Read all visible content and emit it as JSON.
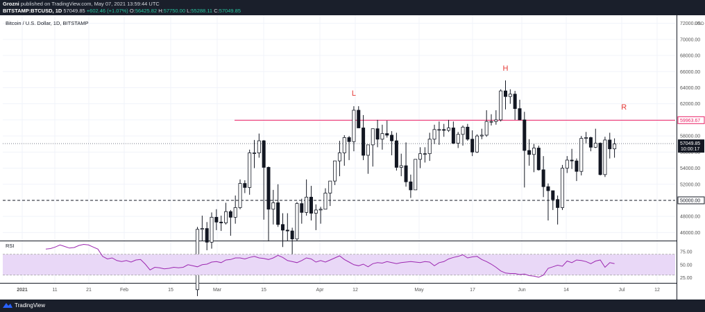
{
  "header": {
    "author": "Grozni",
    "published_text": "published on TradingView.com, May 07, 2021 13:59:44 UTC",
    "symbol": "BITSTAMP:BTCUSD, 1D",
    "last": "57049.85",
    "change": "+602.46 (+1.07%)",
    "open_label": "O:",
    "open": "56425.82",
    "high_label": "H:",
    "high": "57750.00",
    "low_label": "L:",
    "low": "55288.11",
    "close_label": "C:",
    "close": "57049.85"
  },
  "footer": {
    "brand": "TradingView"
  },
  "chart_data": {
    "type": "candlestick",
    "title": "Bitcoin / U.S. Dollar, 1D, BITSTAMP",
    "currency_label": "USD",
    "price_axis": {
      "range": [
        45000,
        73000
      ],
      "ticks": [
        "46000.00",
        "48000.00",
        "50000.00",
        "52000.00",
        "54000.00",
        "56000.00",
        "58000.00",
        "60000.00",
        "62000.00",
        "64000.00",
        "66000.00",
        "68000.00",
        "70000.00",
        "72000.00"
      ]
    },
    "time_axis": {
      "labels": [
        "2021",
        "11",
        "21",
        "Feb",
        "15",
        "Mar",
        "15",
        "Apr",
        "12",
        "May",
        "17",
        "Jun",
        "14",
        "Jul",
        "12"
      ]
    },
    "candles": [
      {
        "date": "2021-02-08",
        "o": 38900,
        "h": 46700,
        "l": 38100,
        "c": 46400
      },
      {
        "date": "2021-02-09",
        "o": 46400,
        "h": 48100,
        "l": 45000,
        "c": 46500
      },
      {
        "date": "2021-02-10",
        "o": 46500,
        "h": 47300,
        "l": 43800,
        "c": 44800
      },
      {
        "date": "2021-02-11",
        "o": 44800,
        "h": 48500,
        "l": 44000,
        "c": 47900
      },
      {
        "date": "2021-02-12",
        "o": 47900,
        "h": 48900,
        "l": 46300,
        "c": 47300
      },
      {
        "date": "2021-02-13",
        "o": 47300,
        "h": 48100,
        "l": 46200,
        "c": 47200
      },
      {
        "date": "2021-02-14",
        "o": 47200,
        "h": 49700,
        "l": 47000,
        "c": 48600
      },
      {
        "date": "2021-02-15",
        "o": 48600,
        "h": 48800,
        "l": 45600,
        "c": 47900
      },
      {
        "date": "2021-02-16",
        "o": 47900,
        "h": 50600,
        "l": 47100,
        "c": 49100
      },
      {
        "date": "2021-02-17",
        "o": 49100,
        "h": 52600,
        "l": 48900,
        "c": 52100
      },
      {
        "date": "2021-02-18",
        "o": 52100,
        "h": 52500,
        "l": 50900,
        "c": 51600
      },
      {
        "date": "2021-02-19",
        "o": 51600,
        "h": 56300,
        "l": 50700,
        "c": 55900
      },
      {
        "date": "2021-02-20",
        "o": 55900,
        "h": 57500,
        "l": 54000,
        "c": 55900
      },
      {
        "date": "2021-02-21",
        "o": 55900,
        "h": 58300,
        "l": 55300,
        "c": 57400
      },
      {
        "date": "2021-02-22",
        "o": 57400,
        "h": 57500,
        "l": 47600,
        "c": 54100
      },
      {
        "date": "2021-02-23",
        "o": 54100,
        "h": 54200,
        "l": 44900,
        "c": 48900
      },
      {
        "date": "2021-02-24",
        "o": 48900,
        "h": 51300,
        "l": 47000,
        "c": 49700
      },
      {
        "date": "2021-02-25",
        "o": 49700,
        "h": 52000,
        "l": 46700,
        "c": 47000
      },
      {
        "date": "2021-02-26",
        "o": 47000,
        "h": 48400,
        "l": 44200,
        "c": 46300
      },
      {
        "date": "2021-02-27",
        "o": 46300,
        "h": 48400,
        "l": 45000,
        "c": 46200
      },
      {
        "date": "2021-02-28",
        "o": 46200,
        "h": 46600,
        "l": 43100,
        "c": 45200
      },
      {
        "date": "2021-03-01",
        "o": 45200,
        "h": 49800,
        "l": 45000,
        "c": 49600
      },
      {
        "date": "2021-03-02",
        "o": 49600,
        "h": 50200,
        "l": 47100,
        "c": 48500
      },
      {
        "date": "2021-03-03",
        "o": 48500,
        "h": 52600,
        "l": 48100,
        "c": 50400
      },
      {
        "date": "2021-03-04",
        "o": 50400,
        "h": 51800,
        "l": 47500,
        "c": 48400
      },
      {
        "date": "2021-03-05",
        "o": 48400,
        "h": 49500,
        "l": 46300,
        "c": 48800
      },
      {
        "date": "2021-03-06",
        "o": 48800,
        "h": 49200,
        "l": 47100,
        "c": 48900
      },
      {
        "date": "2021-03-07",
        "o": 48900,
        "h": 51500,
        "l": 48900,
        "c": 50900
      },
      {
        "date": "2021-03-08",
        "o": 50900,
        "h": 52400,
        "l": 49300,
        "c": 52400
      },
      {
        "date": "2021-03-09",
        "o": 52400,
        "h": 54900,
        "l": 51900,
        "c": 54900
      },
      {
        "date": "2021-03-10",
        "o": 54900,
        "h": 57400,
        "l": 53000,
        "c": 55900
      },
      {
        "date": "2021-03-11",
        "o": 55900,
        "h": 58100,
        "l": 54300,
        "c": 57800
      },
      {
        "date": "2021-03-12",
        "o": 57800,
        "h": 58000,
        "l": 55000,
        "c": 57300
      },
      {
        "date": "2021-03-13",
        "o": 57300,
        "h": 61700,
        "l": 56100,
        "c": 61200
      },
      {
        "date": "2021-03-14",
        "o": 61200,
        "h": 61700,
        "l": 59000,
        "c": 59000
      },
      {
        "date": "2021-03-15",
        "o": 59000,
        "h": 60600,
        "l": 55000,
        "c": 55600
      },
      {
        "date": "2021-03-16",
        "o": 55600,
        "h": 56900,
        "l": 53300,
        "c": 56900
      },
      {
        "date": "2021-03-17",
        "o": 56900,
        "h": 58900,
        "l": 54200,
        "c": 58900
      },
      {
        "date": "2021-03-18",
        "o": 58900,
        "h": 60000,
        "l": 56600,
        "c": 57600
      },
      {
        "date": "2021-03-19",
        "o": 57600,
        "h": 59400,
        "l": 56300,
        "c": 58300
      },
      {
        "date": "2021-03-20",
        "o": 58300,
        "h": 59900,
        "l": 57800,
        "c": 58100
      },
      {
        "date": "2021-03-21",
        "o": 58100,
        "h": 58600,
        "l": 55600,
        "c": 57400
      },
      {
        "date": "2021-03-22",
        "o": 57400,
        "h": 58400,
        "l": 53700,
        "c": 54100
      },
      {
        "date": "2021-03-23",
        "o": 54100,
        "h": 55800,
        "l": 53000,
        "c": 54300
      },
      {
        "date": "2021-03-24",
        "o": 54300,
        "h": 57200,
        "l": 51700,
        "c": 52300
      },
      {
        "date": "2021-03-25",
        "o": 52300,
        "h": 53200,
        "l": 50300,
        "c": 51300
      },
      {
        "date": "2021-03-26",
        "o": 51300,
        "h": 55100,
        "l": 51300,
        "c": 55100
      },
      {
        "date": "2021-03-27",
        "o": 55100,
        "h": 56600,
        "l": 54000,
        "c": 55800
      },
      {
        "date": "2021-03-28",
        "o": 55800,
        "h": 56600,
        "l": 54700,
        "c": 55800
      },
      {
        "date": "2021-03-29",
        "o": 55800,
        "h": 58400,
        "l": 54900,
        "c": 57600
      },
      {
        "date": "2021-03-30",
        "o": 57600,
        "h": 59400,
        "l": 57000,
        "c": 58800
      },
      {
        "date": "2021-03-31",
        "o": 58800,
        "h": 59800,
        "l": 56900,
        "c": 58800
      },
      {
        "date": "2021-04-01",
        "o": 58800,
        "h": 59500,
        "l": 57900,
        "c": 58700
      },
      {
        "date": "2021-04-02",
        "o": 58700,
        "h": 60000,
        "l": 58500,
        "c": 59000
      },
      {
        "date": "2021-04-03",
        "o": 59000,
        "h": 59800,
        "l": 57000,
        "c": 57100
      },
      {
        "date": "2021-04-04",
        "o": 57100,
        "h": 58500,
        "l": 56500,
        "c": 58200
      },
      {
        "date": "2021-04-05",
        "o": 58200,
        "h": 59300,
        "l": 56800,
        "c": 59100
      },
      {
        "date": "2021-04-06",
        "o": 59100,
        "h": 59500,
        "l": 57400,
        "c": 57600
      },
      {
        "date": "2021-04-07",
        "o": 57600,
        "h": 58700,
        "l": 55500,
        "c": 56000
      },
      {
        "date": "2021-04-08",
        "o": 56000,
        "h": 58200,
        "l": 55900,
        "c": 58000
      },
      {
        "date": "2021-04-09",
        "o": 58000,
        "h": 58900,
        "l": 57600,
        "c": 58100
      },
      {
        "date": "2021-04-10",
        "o": 58100,
        "h": 61200,
        "l": 57900,
        "c": 59800
      },
      {
        "date": "2021-04-11",
        "o": 59800,
        "h": 60700,
        "l": 59300,
        "c": 59800
      },
      {
        "date": "2021-04-12",
        "o": 59800,
        "h": 61200,
        "l": 59400,
        "c": 60000
      },
      {
        "date": "2021-04-13",
        "o": 60000,
        "h": 63800,
        "l": 59800,
        "c": 63600
      },
      {
        "date": "2021-04-14",
        "o": 63600,
        "h": 64900,
        "l": 61300,
        "c": 62900
      },
      {
        "date": "2021-04-15",
        "o": 62900,
        "h": 63800,
        "l": 62000,
        "c": 63200
      },
      {
        "date": "2021-04-16",
        "o": 63200,
        "h": 63600,
        "l": 60000,
        "c": 61400
      },
      {
        "date": "2021-04-17",
        "o": 61400,
        "h": 62500,
        "l": 60100,
        "c": 60000
      },
      {
        "date": "2021-04-18",
        "o": 60000,
        "h": 61000,
        "l": 51600,
        "c": 56200
      },
      {
        "date": "2021-04-19",
        "o": 56200,
        "h": 57600,
        "l": 54300,
        "c": 55700
      },
      {
        "date": "2021-04-20",
        "o": 55700,
        "h": 57000,
        "l": 53500,
        "c": 56500
      },
      {
        "date": "2021-04-21",
        "o": 56500,
        "h": 56800,
        "l": 53700,
        "c": 53800
      },
      {
        "date": "2021-04-22",
        "o": 53800,
        "h": 55500,
        "l": 50400,
        "c": 51700
      },
      {
        "date": "2021-04-23",
        "o": 51700,
        "h": 52100,
        "l": 47500,
        "c": 51200
      },
      {
        "date": "2021-04-24",
        "o": 51200,
        "h": 51200,
        "l": 48800,
        "c": 50100
      },
      {
        "date": "2021-04-25",
        "o": 50100,
        "h": 50600,
        "l": 47000,
        "c": 49100
      },
      {
        "date": "2021-04-26",
        "o": 49100,
        "h": 54400,
        "l": 48800,
        "c": 54000
      },
      {
        "date": "2021-04-27",
        "o": 54000,
        "h": 55500,
        "l": 53400,
        "c": 55000
      },
      {
        "date": "2021-04-28",
        "o": 55000,
        "h": 56400,
        "l": 53900,
        "c": 54900
      },
      {
        "date": "2021-04-29",
        "o": 54900,
        "h": 55200,
        "l": 52400,
        "c": 53600
      },
      {
        "date": "2021-04-30",
        "o": 53600,
        "h": 58000,
        "l": 53100,
        "c": 57700
      },
      {
        "date": "2021-05-01",
        "o": 57700,
        "h": 58500,
        "l": 57100,
        "c": 57800
      },
      {
        "date": "2021-05-02",
        "o": 57800,
        "h": 57900,
        "l": 56100,
        "c": 56600
      },
      {
        "date": "2021-05-03",
        "o": 56600,
        "h": 58900,
        "l": 56500,
        "c": 57100
      },
      {
        "date": "2021-05-04",
        "o": 57100,
        "h": 57200,
        "l": 53100,
        "c": 53200
      },
      {
        "date": "2021-05-05",
        "o": 53200,
        "h": 57900,
        "l": 52900,
        "c": 57500
      },
      {
        "date": "2021-05-06",
        "o": 57500,
        "h": 58400,
        "l": 55200,
        "c": 56400
      },
      {
        "date": "2021-05-07",
        "o": 56400,
        "h": 57700,
        "l": 55300,
        "c": 57000
      }
    ],
    "horizontal_lines": [
      {
        "price": 59963.67,
        "label": "59963.67",
        "style": "solid",
        "color": "#e91e63"
      },
      {
        "price": 50000.0,
        "label": "50000.00",
        "style": "dashed",
        "color": "#131722"
      },
      {
        "price": 57049.85,
        "label": "57049.85",
        "style": "dotted",
        "color": "#131722"
      }
    ],
    "countdown": "10:00:17",
    "annotations": [
      {
        "text": "L",
        "date": "2021-03-13",
        "price": 63000,
        "color": "#e53935"
      },
      {
        "text": "H",
        "date": "2021-04-14",
        "price": 66100,
        "color": "#e53935"
      },
      {
        "text": "R",
        "date": "2021-05-09",
        "price": 61300,
        "color": "#e53935"
      }
    ],
    "rsi": {
      "label": "RSI",
      "ticks": [
        "75.00",
        "50.00",
        "25.00"
      ],
      "range": [
        15,
        95
      ],
      "band": [
        30,
        70
      ],
      "band_color": "#e9d8f7",
      "line_color": "#9c27b0",
      "values": [
        80,
        81,
        84,
        88,
        85,
        82,
        83,
        87,
        89,
        88,
        84,
        80,
        66,
        61,
        63,
        58,
        56,
        58,
        55,
        59,
        60,
        51,
        40,
        45,
        44,
        42,
        43,
        45,
        44,
        45,
        50,
        48,
        46,
        50,
        51,
        55,
        56,
        54,
        59,
        60,
        63,
        63,
        61,
        64,
        66,
        63,
        62,
        60,
        63,
        68,
        64,
        58,
        56,
        54,
        58,
        63,
        61,
        55,
        58,
        55,
        59,
        63,
        67,
        60,
        55,
        50,
        48,
        51,
        46,
        52,
        54,
        53,
        56,
        54,
        52,
        54,
        55,
        56,
        55,
        54,
        56,
        55,
        48,
        54,
        56,
        61,
        64,
        66,
        69,
        63,
        65,
        66,
        60,
        56,
        51,
        45,
        38,
        34,
        33,
        33,
        31,
        32,
        29,
        28,
        26,
        30,
        43,
        46,
        49,
        47,
        57,
        54,
        59,
        58,
        56,
        52,
        57,
        59,
        45,
        54,
        52
      ]
    },
    "colors": {
      "up": "#ffffff",
      "down": "#131722",
      "outline": "#131722",
      "grid": "#f0f3fa",
      "axis_text": "#131722"
    }
  }
}
